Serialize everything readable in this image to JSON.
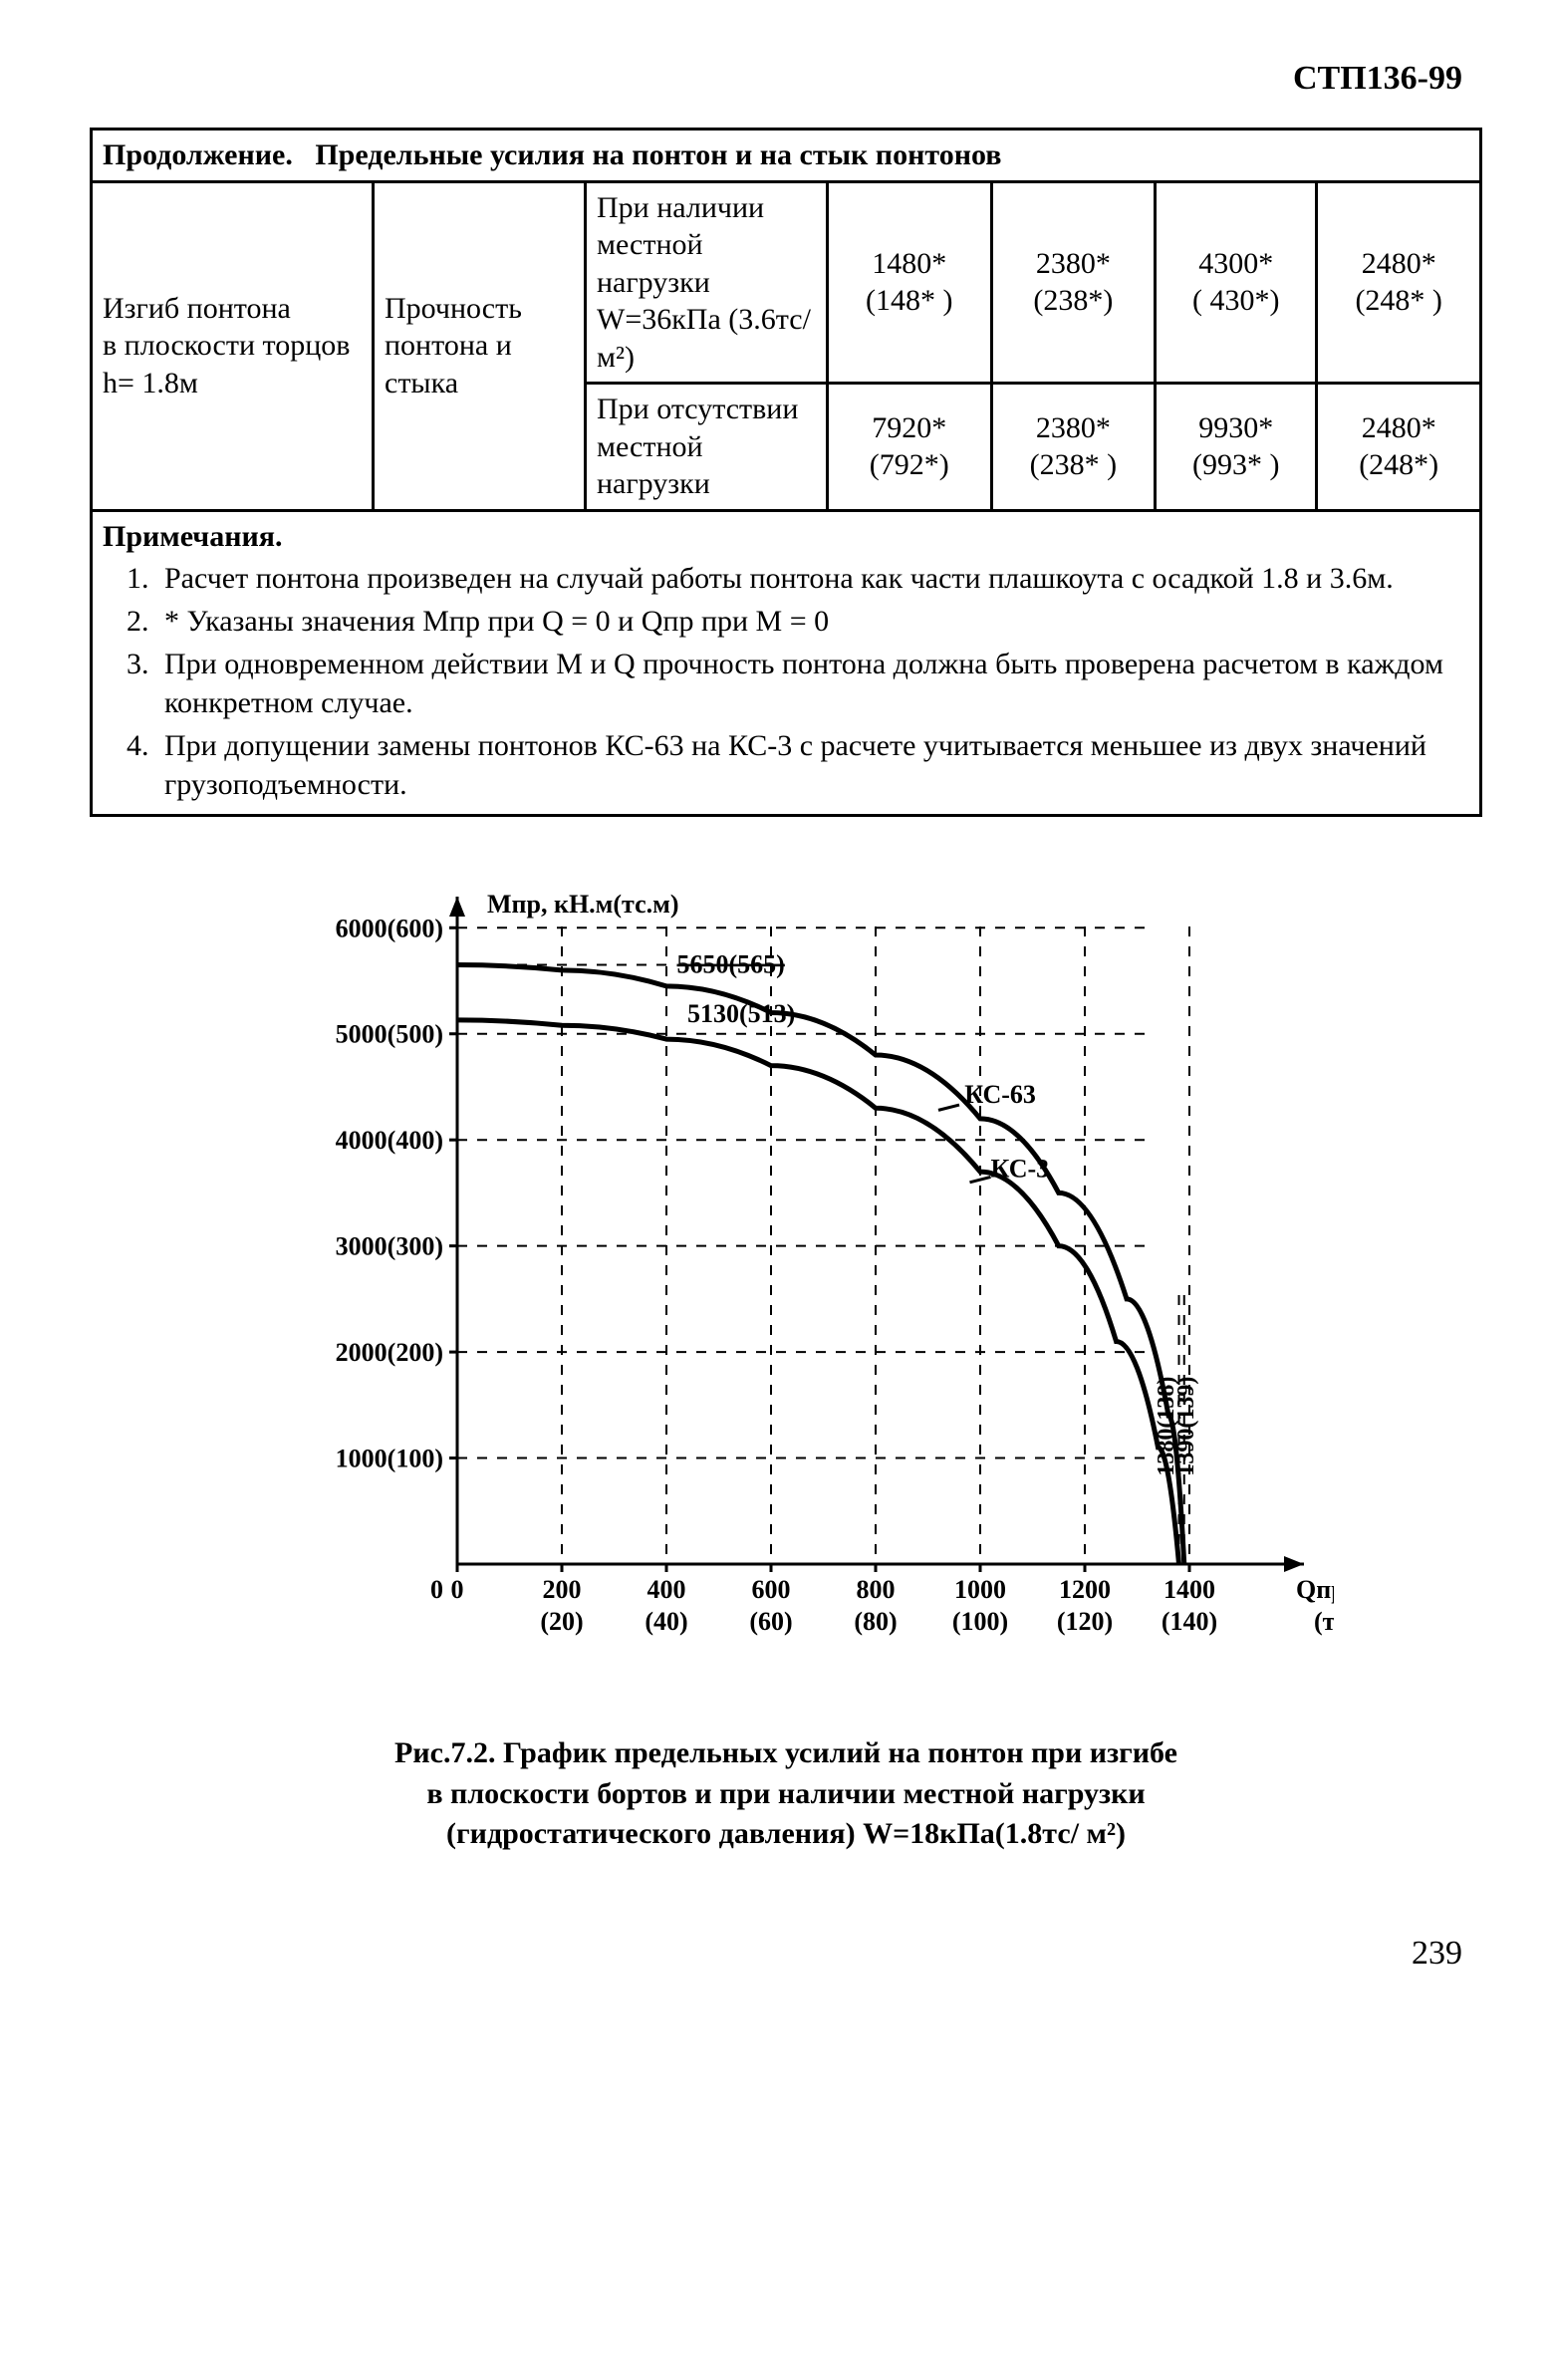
{
  "doc_code": "СТП136-99",
  "page_number": "239",
  "table": {
    "title": "Продолжение.   Предельные усилия на понтон и на стык понтонов",
    "col1": "Изгиб понтона в плоскости торцов h= 1.8м",
    "col2": "Прочность понтона и стыка",
    "cond1": "При наличии местной нагрузки W=36кПа (3.6тс/ м²)",
    "cond2": "При отсутствии местной нагрузки",
    "row1": {
      "c1a": "1480*",
      "c1b": "(148* )",
      "c2a": "2380*",
      "c2b": "(238*)",
      "c3a": "4300*",
      "c3b": "( 430*)",
      "c4a": "2480*",
      "c4b": "(248* )"
    },
    "row2": {
      "c1a": "7920*",
      "c1b": "(792*)",
      "c2a": "2380*",
      "c2b": "(238* )",
      "c3a": "9930*",
      "c3b": "(993* )",
      "c4a": "2480*",
      "c4b": "(248*)"
    },
    "notes_title": "Примечания.",
    "notes": [
      "Расчет понтона произведен на случай работы понтона как части плашкоута с осадкой 1.8 и 3.6м.",
      "* Указаны значения  Мпр при  Q = 0  и  Qпр  при М = 0",
      "При одновременном действии  М и Q прочность понтона должна быть проверена расчетом в каждом конкретном случае.",
      "При допущении замены понтонов КС-63 на КС-3 с расчете учитывается меньшее из двух значений грузоподъемности."
    ]
  },
  "chart": {
    "type": "line",
    "y_axis_title": "Мпр, кН.м(тс.м)",
    "x_axis_title_top": "Qпр, кН",
    "x_axis_title_bottom": "(тс)",
    "xlim": [
      0,
      1600
    ],
    "ylim": [
      0,
      6200
    ],
    "x_ticks": [
      0,
      200,
      400,
      600,
      800,
      1000,
      1200,
      1400
    ],
    "x_tick_labels_top": [
      "0",
      "200",
      "400",
      "600",
      "800",
      "1000",
      "1200",
      "1400"
    ],
    "x_tick_labels_bottom": [
      "",
      "(20)",
      "(40)",
      "(60)",
      "(80)",
      "(100)",
      "(120)",
      "(140)"
    ],
    "y_ticks": [
      1000,
      2000,
      3000,
      4000,
      5000,
      6000
    ],
    "y_tick_labels": [
      "1000(100)",
      "2000(200)",
      "3000(300)",
      "4000(400)",
      "5000(500)",
      "6000(600)"
    ],
    "y_grid_at": [
      1000,
      2000,
      3000,
      4000,
      5000,
      6000
    ],
    "x_grid_at": [
      200,
      400,
      600,
      800,
      1000,
      1200,
      1400
    ],
    "series": {
      "ks63": {
        "label": "КС-63",
        "points": [
          [
            0,
            5650
          ],
          [
            200,
            5600
          ],
          [
            400,
            5450
          ],
          [
            600,
            5200
          ],
          [
            800,
            4800
          ],
          [
            1000,
            4200
          ],
          [
            1150,
            3500
          ],
          [
            1280,
            2500
          ],
          [
            1360,
            1400
          ],
          [
            1390,
            0
          ]
        ],
        "stroke": "#000000",
        "stroke_width": 5
      },
      "ks3": {
        "label": "КС-3",
        "points": [
          [
            0,
            5130
          ],
          [
            200,
            5080
          ],
          [
            400,
            4950
          ],
          [
            600,
            4700
          ],
          [
            800,
            4300
          ],
          [
            1000,
            3700
          ],
          [
            1150,
            3000
          ],
          [
            1260,
            2100
          ],
          [
            1340,
            1100
          ],
          [
            1380,
            0
          ]
        ],
        "stroke": "#000000",
        "stroke_width": 5
      }
    },
    "annotations": {
      "left_top": "5650(565)",
      "left_mid": "5130(513)",
      "v_right_inner": "1380(138)",
      "v_right_outer": "1390(139)"
    },
    "background_color": "#ffffff",
    "axis_color": "#000000",
    "grid_color": "#000000",
    "label_fontsize": 26,
    "tick_fontsize": 26
  },
  "caption": {
    "l1": "Рис.7.2. График  предельных усилий на понтон при изгибе",
    "l2": "в плоскости бортов и при наличии местной нагрузки",
    "l3": "(гидростатического давления) W=18кПа(1.8тс/ м²)"
  }
}
